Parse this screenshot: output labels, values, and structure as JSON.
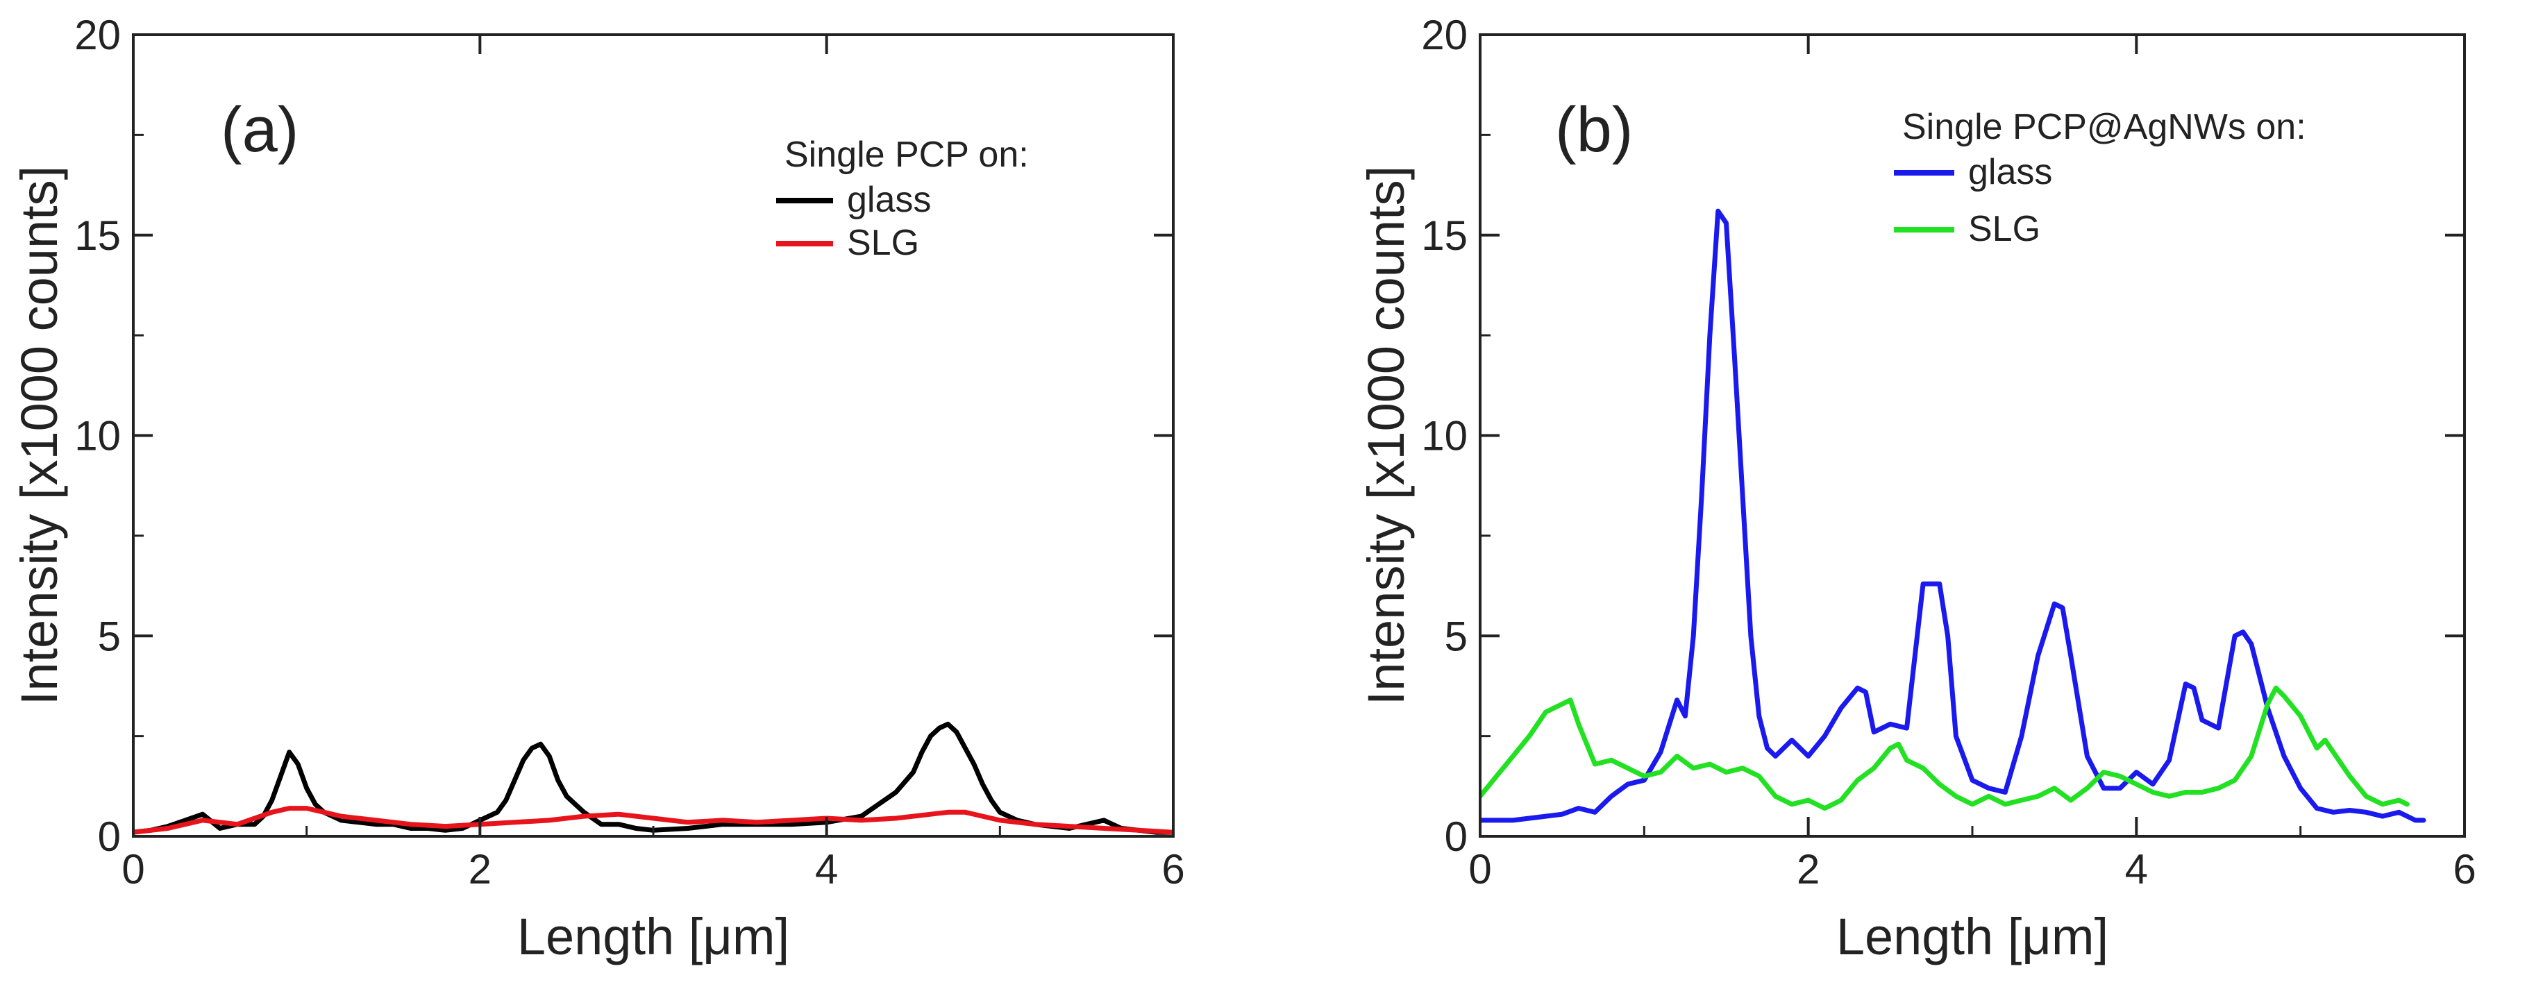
{
  "chart_data": [
    {
      "type": "line",
      "panel_label": "(a)",
      "xlabel": "Length [μm]",
      "ylabel": "Intensity [x1000 counts]",
      "xlim": [
        0,
        6
      ],
      "ylim": [
        0,
        20
      ],
      "xticks": [
        0,
        2,
        4,
        6
      ],
      "yticks": [
        0,
        5,
        10,
        15,
        20
      ],
      "grid": false,
      "legend_position": "top-right",
      "legend_title": "Single PCP on:",
      "series": [
        {
          "name": "glass",
          "color": "#000000",
          "x": [
            0,
            0.1,
            0.2,
            0.3,
            0.4,
            0.5,
            0.6,
            0.7,
            0.75,
            0.8,
            0.85,
            0.9,
            0.95,
            1.0,
            1.05,
            1.1,
            1.2,
            1.3,
            1.4,
            1.5,
            1.6,
            1.7,
            1.8,
            1.9,
            2.0,
            2.1,
            2.15,
            2.2,
            2.25,
            2.3,
            2.35,
            2.4,
            2.45,
            2.5,
            2.55,
            2.6,
            2.7,
            2.8,
            2.9,
            3.0,
            3.2,
            3.4,
            3.6,
            3.8,
            4.0,
            4.2,
            4.3,
            4.4,
            4.5,
            4.55,
            4.6,
            4.65,
            4.7,
            4.75,
            4.8,
            4.85,
            4.9,
            4.95,
            5.0,
            5.1,
            5.2,
            5.3,
            5.4,
            5.5,
            5.6,
            5.7,
            5.8,
            5.9,
            6.0
          ],
          "y": [
            0.1,
            0.15,
            0.25,
            0.4,
            0.55,
            0.2,
            0.3,
            0.3,
            0.5,
            0.9,
            1.5,
            2.1,
            1.8,
            1.2,
            0.8,
            0.6,
            0.4,
            0.35,
            0.3,
            0.3,
            0.2,
            0.2,
            0.15,
            0.2,
            0.4,
            0.6,
            0.9,
            1.4,
            1.9,
            2.2,
            2.3,
            2.0,
            1.4,
            1.0,
            0.8,
            0.6,
            0.3,
            0.3,
            0.2,
            0.15,
            0.2,
            0.3,
            0.3,
            0.3,
            0.35,
            0.5,
            0.8,
            1.1,
            1.6,
            2.1,
            2.5,
            2.7,
            2.8,
            2.6,
            2.2,
            1.8,
            1.3,
            0.9,
            0.6,
            0.4,
            0.3,
            0.25,
            0.2,
            0.3,
            0.4,
            0.2,
            0.15,
            0.1,
            0.1
          ]
        },
        {
          "name": "SLG",
          "color": "#e8141c",
          "x": [
            0,
            0.2,
            0.4,
            0.6,
            0.8,
            0.9,
            1.0,
            1.1,
            1.2,
            1.4,
            1.6,
            1.8,
            2.0,
            2.2,
            2.4,
            2.6,
            2.8,
            3.0,
            3.2,
            3.4,
            3.6,
            3.8,
            4.0,
            4.2,
            4.4,
            4.6,
            4.7,
            4.8,
            4.9,
            5.0,
            5.2,
            5.4,
            5.6,
            5.8,
            6.0
          ],
          "y": [
            0.1,
            0.2,
            0.4,
            0.3,
            0.6,
            0.7,
            0.7,
            0.6,
            0.5,
            0.4,
            0.3,
            0.25,
            0.3,
            0.35,
            0.4,
            0.5,
            0.55,
            0.45,
            0.35,
            0.4,
            0.35,
            0.4,
            0.45,
            0.4,
            0.45,
            0.55,
            0.6,
            0.6,
            0.5,
            0.4,
            0.3,
            0.25,
            0.2,
            0.15,
            0.1
          ]
        }
      ]
    },
    {
      "type": "line",
      "panel_label": "(b)",
      "xlabel": "Length [μm]",
      "ylabel": "Intensity [x1000 counts]",
      "xlim": [
        0,
        6
      ],
      "ylim": [
        0,
        20
      ],
      "xticks": [
        0,
        2,
        4,
        6
      ],
      "yticks": [
        0,
        5,
        10,
        15,
        20
      ],
      "grid": false,
      "legend_position": "top-center",
      "legend_title": "Single PCP@AgNWs on:",
      "series": [
        {
          "name": "glass",
          "color": "#1a1aee",
          "x": [
            0,
            0.1,
            0.2,
            0.3,
            0.4,
            0.5,
            0.6,
            0.7,
            0.8,
            0.9,
            1.0,
            1.1,
            1.2,
            1.25,
            1.3,
            1.35,
            1.4,
            1.45,
            1.5,
            1.55,
            1.6,
            1.65,
            1.7,
            1.75,
            1.8,
            1.9,
            2.0,
            2.1,
            2.2,
            2.3,
            2.35,
            2.4,
            2.5,
            2.6,
            2.65,
            2.7,
            2.8,
            2.85,
            2.9,
            3.0,
            3.1,
            3.2,
            3.3,
            3.4,
            3.5,
            3.55,
            3.6,
            3.7,
            3.8,
            3.9,
            4.0,
            4.1,
            4.2,
            4.3,
            4.35,
            4.4,
            4.5,
            4.6,
            4.65,
            4.7,
            4.8,
            4.9,
            5.0,
            5.1,
            5.2,
            5.3,
            5.4,
            5.5,
            5.6,
            5.7,
            5.75
          ],
          "y": [
            0.4,
            0.4,
            0.4,
            0.45,
            0.5,
            0.55,
            0.7,
            0.6,
            1.0,
            1.3,
            1.4,
            2.1,
            3.4,
            3.0,
            5.0,
            8.5,
            12.5,
            15.6,
            15.3,
            12.0,
            8.5,
            5.0,
            3.0,
            2.2,
            2.0,
            2.4,
            2.0,
            2.5,
            3.2,
            3.7,
            3.6,
            2.6,
            2.8,
            2.7,
            4.5,
            6.3,
            6.3,
            5.0,
            2.5,
            1.4,
            1.2,
            1.1,
            2.5,
            4.5,
            5.8,
            5.7,
            4.5,
            2.0,
            1.2,
            1.2,
            1.6,
            1.3,
            1.9,
            3.8,
            3.7,
            2.9,
            2.7,
            5.0,
            5.1,
            4.8,
            3.2,
            2.0,
            1.2,
            0.7,
            0.6,
            0.65,
            0.6,
            0.5,
            0.6,
            0.4,
            0.4
          ]
        },
        {
          "name": "SLG",
          "color": "#22e022",
          "x": [
            0,
            0.1,
            0.2,
            0.3,
            0.4,
            0.5,
            0.55,
            0.6,
            0.7,
            0.8,
            0.9,
            1.0,
            1.1,
            1.2,
            1.3,
            1.4,
            1.5,
            1.6,
            1.7,
            1.8,
            1.9,
            2.0,
            2.1,
            2.2,
            2.3,
            2.4,
            2.5,
            2.55,
            2.6,
            2.7,
            2.8,
            2.9,
            3.0,
            3.1,
            3.2,
            3.3,
            3.4,
            3.5,
            3.6,
            3.7,
            3.8,
            3.9,
            4.0,
            4.1,
            4.2,
            4.3,
            4.4,
            4.5,
            4.6,
            4.7,
            4.8,
            4.85,
            4.9,
            5.0,
            5.1,
            5.15,
            5.2,
            5.3,
            5.4,
            5.5,
            5.6,
            5.65
          ],
          "y": [
            1.0,
            1.5,
            2.0,
            2.5,
            3.1,
            3.3,
            3.4,
            2.8,
            1.8,
            1.9,
            1.7,
            1.5,
            1.6,
            2.0,
            1.7,
            1.8,
            1.6,
            1.7,
            1.5,
            1.0,
            0.8,
            0.9,
            0.7,
            0.9,
            1.4,
            1.7,
            2.2,
            2.3,
            1.9,
            1.7,
            1.3,
            1.0,
            0.8,
            1.0,
            0.8,
            0.9,
            1.0,
            1.2,
            0.9,
            1.2,
            1.6,
            1.5,
            1.3,
            1.1,
            1.0,
            1.1,
            1.1,
            1.2,
            1.4,
            2.0,
            3.3,
            3.7,
            3.5,
            3.0,
            2.2,
            2.4,
            2.1,
            1.5,
            1.0,
            0.8,
            0.9,
            0.8
          ]
        }
      ]
    }
  ]
}
